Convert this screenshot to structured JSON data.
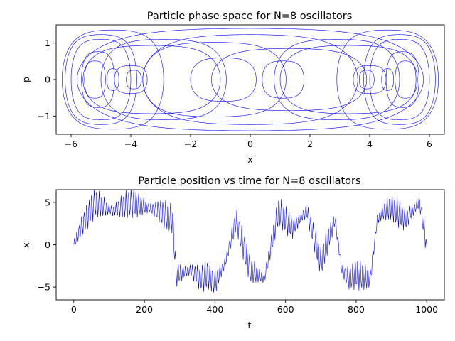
{
  "chart_data": [
    {
      "type": "line",
      "title": "Particle phase space for N=8 oscillators",
      "xlabel": "x",
      "ylabel": "p",
      "xlim": [
        -6.5,
        6.5
      ],
      "ylim": [
        -1.5,
        1.5
      ],
      "xticks": [
        -6,
        -4,
        -2,
        0,
        2,
        4,
        6
      ],
      "xtick_labels": [
        "−6",
        "−4",
        "−2",
        "0",
        "2",
        "4",
        "6"
      ],
      "yticks": [
        1,
        0,
        -1
      ],
      "ytick_labels": [
        "1",
        "0",
        "−1"
      ],
      "grid": false,
      "series": [
        {
          "color": "#0000ff",
          "description_orbits_x_p": [
            [
              -5.0,
              0.0,
              1.0,
              1.3
            ],
            [
              -5.0,
              0.0,
              1.2,
              1.45
            ],
            [
              -5.1,
              0.0,
              0.55,
              0.9
            ],
            [
              -5.2,
              0.0,
              0.35,
              0.6
            ],
            [
              -4.6,
              0.0,
              0.2,
              0.35
            ],
            [
              -4.0,
              0.0,
              0.55,
              0.45
            ],
            [
              -3.9,
              0.0,
              0.25,
              0.3
            ],
            [
              -3.3,
              0.0,
              2.3,
              1.1
            ],
            [
              -4.6,
              0.0,
              1.7,
              1.6
            ],
            [
              -2.9,
              0.0,
              2.1,
              1.3
            ],
            [
              5.0,
              0.0,
              1.0,
              1.3
            ],
            [
              5.0,
              0.0,
              1.2,
              1.45
            ],
            [
              5.1,
              0.0,
              0.55,
              0.9
            ],
            [
              5.2,
              0.0,
              0.35,
              0.6
            ],
            [
              4.6,
              0.0,
              0.2,
              0.35
            ],
            [
              4.0,
              0.0,
              0.55,
              0.45
            ],
            [
              3.9,
              0.0,
              0.25,
              0.3
            ],
            [
              3.3,
              0.0,
              2.3,
              1.1
            ],
            [
              4.6,
              0.0,
              1.7,
              1.6
            ],
            [
              2.9,
              0.0,
              2.1,
              1.3
            ],
            [
              0.0,
              0.0,
              5.8,
              1.65
            ],
            [
              0.0,
              0.0,
              3.6,
              1.45
            ],
            [
              -0.9,
              0.0,
              1.1,
              0.7
            ],
            [
              1.1,
              0.0,
              0.7,
              0.6
            ],
            [
              -1.2,
              0.0,
              2.4,
              1.2
            ],
            [
              1.3,
              0.0,
              2.6,
              1.0
            ]
          ]
        }
      ]
    },
    {
      "type": "line",
      "title": "Particle position vs time for N=8 oscillators",
      "xlabel": "t",
      "ylabel": "x",
      "xlim": [
        -50,
        1050
      ],
      "ylim": [
        -6.5,
        6.5
      ],
      "xticks": [
        0,
        200,
        400,
        600,
        800,
        1000
      ],
      "xtick_labels": [
        "0",
        "200",
        "400",
        "600",
        "800",
        "1000"
      ],
      "yticks": [
        5,
        0,
        -5
      ],
      "ytick_labels": [
        "5",
        "0",
        "−5"
      ],
      "grid": false,
      "series": [
        {
          "color": "#0000ff",
          "x": [
            0,
            20,
            60,
            110,
            160,
            200,
            240,
            280,
            290,
            330,
            360,
            380,
            400,
            430,
            460,
            500,
            540,
            580,
            600,
            620,
            660,
            700,
            740,
            760,
            780,
            800,
            840,
            860,
            880,
            900,
            940,
            960,
            980,
            1000
          ],
          "y": [
            0,
            2,
            5,
            4,
            5,
            4.5,
            4,
            3,
            -3.5,
            -3,
            -4,
            -3.5,
            -4.5,
            -2,
            3,
            -3,
            -4,
            4,
            3,
            2,
            4,
            -2,
            3,
            -3,
            -4,
            -3.5,
            -4,
            3,
            4,
            4.5,
            3,
            4,
            5,
            0
          ]
        }
      ]
    }
  ]
}
